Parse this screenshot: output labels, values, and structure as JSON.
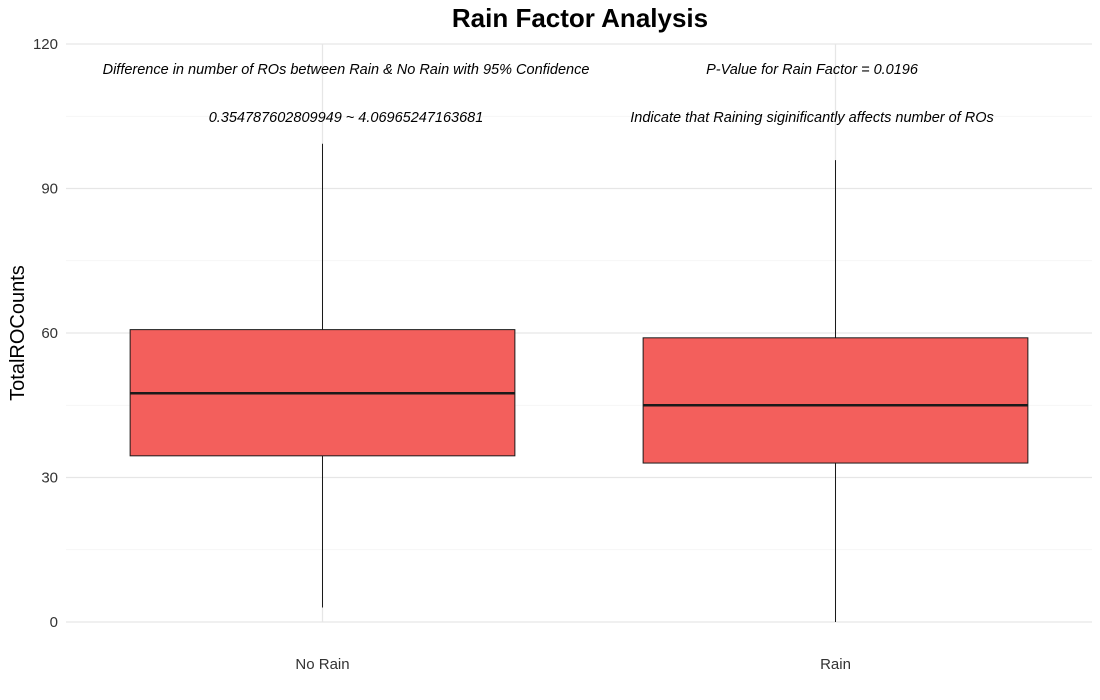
{
  "chart_data": {
    "type": "box",
    "title": "Rain Factor Analysis",
    "xlabel": "",
    "ylabel": "TotalROCounts",
    "ylim": [
      0,
      120
    ],
    "yticks": [
      0,
      30,
      60,
      90,
      120
    ],
    "grid": true,
    "legend": "none",
    "box_color": "#f35f5c",
    "categories": [
      "No Rain",
      "Rain"
    ],
    "boxes": [
      {
        "category": "No Rain",
        "min": 3,
        "q1": 34.5,
        "median": 47.5,
        "q3": 60.7,
        "max": 99.3
      },
      {
        "category": "Rain",
        "min": 0,
        "q1": 33,
        "median": 45,
        "q3": 59,
        "max": 95.9
      }
    ],
    "annotations": [
      {
        "id": "ci-label",
        "text": "Difference in number of ROs between Rain & No Rain with 95% Confidence"
      },
      {
        "id": "ci-values",
        "text": "0.354787602809949  ~  4.06965247163681"
      },
      {
        "id": "pvalue",
        "text": "P-Value for Rain Factor =  0.0196"
      },
      {
        "id": "conclusion",
        "text": "Indicate that Raining siginificantly affects number of ROs"
      }
    ]
  }
}
